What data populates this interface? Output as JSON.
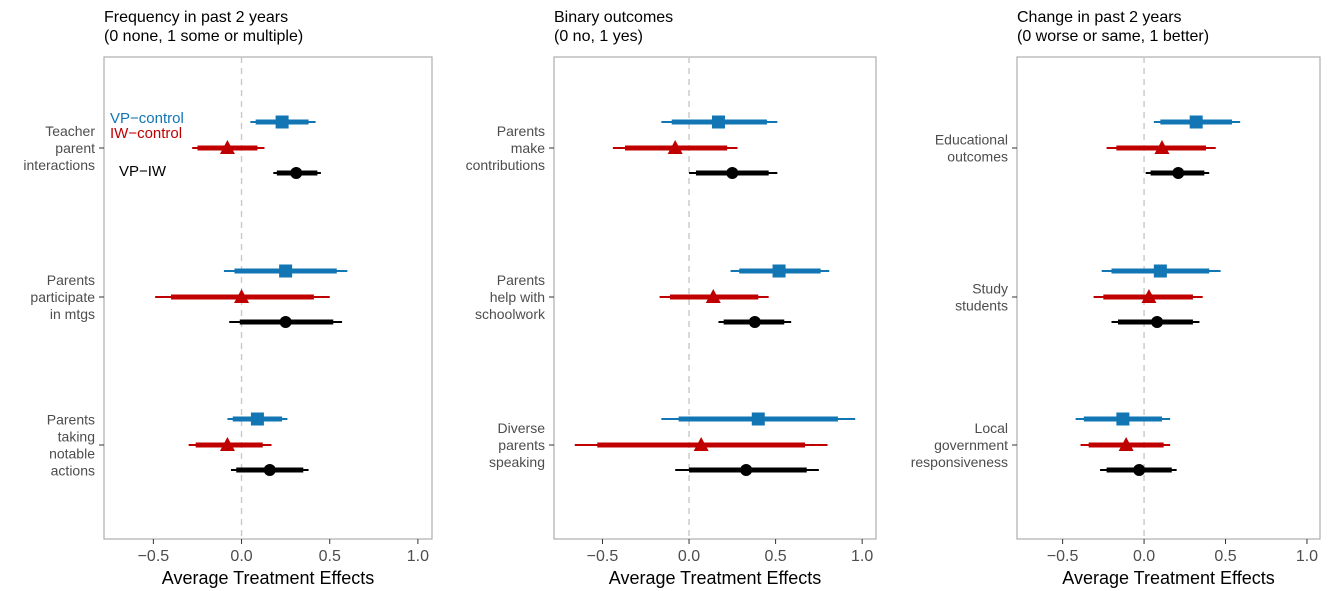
{
  "chart_data": [
    {
      "type": "forest",
      "title": [
        "Frequency in past 2 years",
        "(0 none, 1 some or multiple)"
      ],
      "xlabel": "Average Treatment Effects",
      "xlim": [
        -0.78,
        1.08
      ],
      "xticks": [
        -0.5,
        0.0,
        0.5,
        1.0
      ],
      "xtick_labels": [
        "−0.5",
        "0.0",
        "0.5",
        "1.0"
      ],
      "reference_line": 0,
      "legend": {
        "placement": "top-left inside",
        "entries": [
          {
            "label": "VP−control",
            "color": "#1276b5"
          },
          {
            "label": "IW−control",
            "color": "#c00000"
          },
          {
            "label": "VP−IW",
            "color": "#000000"
          }
        ]
      },
      "outcomes": [
        {
          "label": [
            "Teacher",
            "parent",
            "interactions"
          ],
          "estimates": [
            {
              "series": "VP−control",
              "marker": "square",
              "color": "#1276b5",
              "est": 0.23,
              "ci90": [
                0.08,
                0.38
              ],
              "ci95": [
                0.05,
                0.42
              ]
            },
            {
              "series": "IW−control",
              "marker": "triangle",
              "color": "#c00000",
              "est": -0.08,
              "ci90": [
                -0.25,
                0.09
              ],
              "ci95": [
                -0.28,
                0.13
              ]
            },
            {
              "series": "VP−IW",
              "marker": "circle",
              "color": "#000000",
              "est": 0.31,
              "ci90": [
                0.2,
                0.43
              ],
              "ci95": [
                0.18,
                0.45
              ]
            }
          ]
        },
        {
          "label": [
            "Parents",
            "participate",
            "in mtgs"
          ],
          "estimates": [
            {
              "series": "VP−control",
              "marker": "square",
              "color": "#1276b5",
              "est": 0.25,
              "ci90": [
                -0.04,
                0.54
              ],
              "ci95": [
                -0.1,
                0.6
              ]
            },
            {
              "series": "IW−control",
              "marker": "triangle",
              "color": "#c00000",
              "est": 0.0,
              "ci90": [
                -0.4,
                0.41
              ],
              "ci95": [
                -0.49,
                0.5
              ]
            },
            {
              "series": "VP−IW",
              "marker": "circle",
              "color": "#000000",
              "est": 0.25,
              "ci90": [
                -0.01,
                0.52
              ],
              "ci95": [
                -0.07,
                0.57
              ]
            }
          ]
        },
        {
          "label": [
            "Parents",
            "taking",
            "notable",
            "actions"
          ],
          "estimates": [
            {
              "series": "VP−control",
              "marker": "square",
              "color": "#1276b5",
              "est": 0.09,
              "ci90": [
                -0.05,
                0.23
              ],
              "ci95": [
                -0.08,
                0.26
              ]
            },
            {
              "series": "IW−control",
              "marker": "triangle",
              "color": "#c00000",
              "est": -0.08,
              "ci90": [
                -0.26,
                0.12
              ],
              "ci95": [
                -0.3,
                0.17
              ]
            },
            {
              "series": "VP−IW",
              "marker": "circle",
              "color": "#000000",
              "est": 0.16,
              "ci90": [
                -0.03,
                0.35
              ],
              "ci95": [
                -0.06,
                0.38
              ]
            }
          ]
        }
      ]
    },
    {
      "type": "forest",
      "title": [
        "Binary outcomes",
        "(0 no, 1 yes)"
      ],
      "xlabel": "Average Treatment Effects",
      "xlim": [
        -0.78,
        1.08
      ],
      "xticks": [
        -0.5,
        0.0,
        0.5,
        1.0
      ],
      "xtick_labels": [
        "−0.5",
        "0.0",
        "0.5",
        "1.0"
      ],
      "reference_line": 0,
      "outcomes": [
        {
          "label": [
            "Parents",
            "make",
            "contributions"
          ],
          "estimates": [
            {
              "series": "VP−control",
              "marker": "square",
              "color": "#1276b5",
              "est": 0.17,
              "ci90": [
                -0.1,
                0.45
              ],
              "ci95": [
                -0.16,
                0.51
              ]
            },
            {
              "series": "IW−control",
              "marker": "triangle",
              "color": "#c00000",
              "est": -0.08,
              "ci90": [
                -0.37,
                0.22
              ],
              "ci95": [
                -0.44,
                0.28
              ]
            },
            {
              "series": "VP−IW",
              "marker": "circle",
              "color": "#000000",
              "est": 0.25,
              "ci90": [
                0.04,
                0.46
              ],
              "ci95": [
                0.0,
                0.51
              ]
            }
          ]
        },
        {
          "label": [
            "Parents",
            "help with",
            "schoolwork"
          ],
          "estimates": [
            {
              "series": "VP−control",
              "marker": "square",
              "color": "#1276b5",
              "est": 0.52,
              "ci90": [
                0.29,
                0.76
              ],
              "ci95": [
                0.24,
                0.81
              ]
            },
            {
              "series": "IW−control",
              "marker": "triangle",
              "color": "#c00000",
              "est": 0.14,
              "ci90": [
                -0.11,
                0.4
              ],
              "ci95": [
                -0.17,
                0.46
              ]
            },
            {
              "series": "VP−IW",
              "marker": "circle",
              "color": "#000000",
              "est": 0.38,
              "ci90": [
                0.2,
                0.55
              ],
              "ci95": [
                0.17,
                0.59
              ]
            }
          ]
        },
        {
          "label": [
            "Diverse",
            "parents",
            "speaking"
          ],
          "estimates": [
            {
              "series": "VP−control",
              "marker": "square",
              "color": "#1276b5",
              "est": 0.4,
              "ci90": [
                -0.06,
                0.86
              ],
              "ci95": [
                -0.16,
                0.96
              ]
            },
            {
              "series": "IW−control",
              "marker": "triangle",
              "color": "#c00000",
              "est": 0.07,
              "ci90": [
                -0.53,
                0.67
              ],
              "ci95": [
                -0.66,
                0.8
              ]
            },
            {
              "series": "VP−IW",
              "marker": "circle",
              "color": "#000000",
              "est": 0.33,
              "ci90": [
                0.0,
                0.68
              ],
              "ci95": [
                -0.08,
                0.75
              ]
            }
          ]
        }
      ]
    },
    {
      "type": "forest",
      "title": [
        "Change in past 2 years",
        "(0 worse or same, 1 better)"
      ],
      "xlabel": "Average Treatment Effects",
      "xlim": [
        -0.78,
        1.08
      ],
      "xticks": [
        -0.5,
        0.0,
        0.5,
        1.0
      ],
      "xtick_labels": [
        "−0.5",
        "0.0",
        "0.5",
        "1.0"
      ],
      "reference_line": 0,
      "outcomes": [
        {
          "label": [
            "Educational",
            "outcomes"
          ],
          "estimates": [
            {
              "series": "VP−control",
              "marker": "square",
              "color": "#1276b5",
              "est": 0.32,
              "ci90": [
                0.1,
                0.54
              ],
              "ci95": [
                0.06,
                0.59
              ]
            },
            {
              "series": "IW−control",
              "marker": "triangle",
              "color": "#c00000",
              "est": 0.11,
              "ci90": [
                -0.17,
                0.38
              ],
              "ci95": [
                -0.23,
                0.44
              ]
            },
            {
              "series": "VP−IW",
              "marker": "circle",
              "color": "#000000",
              "est": 0.21,
              "ci90": [
                0.04,
                0.37
              ],
              "ci95": [
                0.01,
                0.4
              ]
            }
          ]
        },
        {
          "label": [
            "Study",
            "students"
          ],
          "estimates": [
            {
              "series": "VP−control",
              "marker": "square",
              "color": "#1276b5",
              "est": 0.1,
              "ci90": [
                -0.2,
                0.4
              ],
              "ci95": [
                -0.26,
                0.47
              ]
            },
            {
              "series": "IW−control",
              "marker": "triangle",
              "color": "#c00000",
              "est": 0.03,
              "ci90": [
                -0.25,
                0.3
              ],
              "ci95": [
                -0.31,
                0.36
              ]
            },
            {
              "series": "VP−IW",
              "marker": "circle",
              "color": "#000000",
              "est": 0.08,
              "ci90": [
                -0.16,
                0.3
              ],
              "ci95": [
                -0.2,
                0.34
              ]
            }
          ]
        },
        {
          "label": [
            "Local",
            "government",
            "responsiveness"
          ],
          "estimates": [
            {
              "series": "VP−control",
              "marker": "square",
              "color": "#1276b5",
              "est": -0.13,
              "ci90": [
                -0.37,
                0.11
              ],
              "ci95": [
                -0.42,
                0.16
              ]
            },
            {
              "series": "IW−control",
              "marker": "triangle",
              "color": "#c00000",
              "est": -0.11,
              "ci90": [
                -0.34,
                0.12
              ],
              "ci95": [
                -0.39,
                0.16
              ]
            },
            {
              "series": "VP−IW",
              "marker": "circle",
              "color": "#000000",
              "est": -0.03,
              "ci90": [
                -0.23,
                0.17
              ],
              "ci95": [
                -0.27,
                0.2
              ]
            }
          ]
        }
      ]
    }
  ]
}
